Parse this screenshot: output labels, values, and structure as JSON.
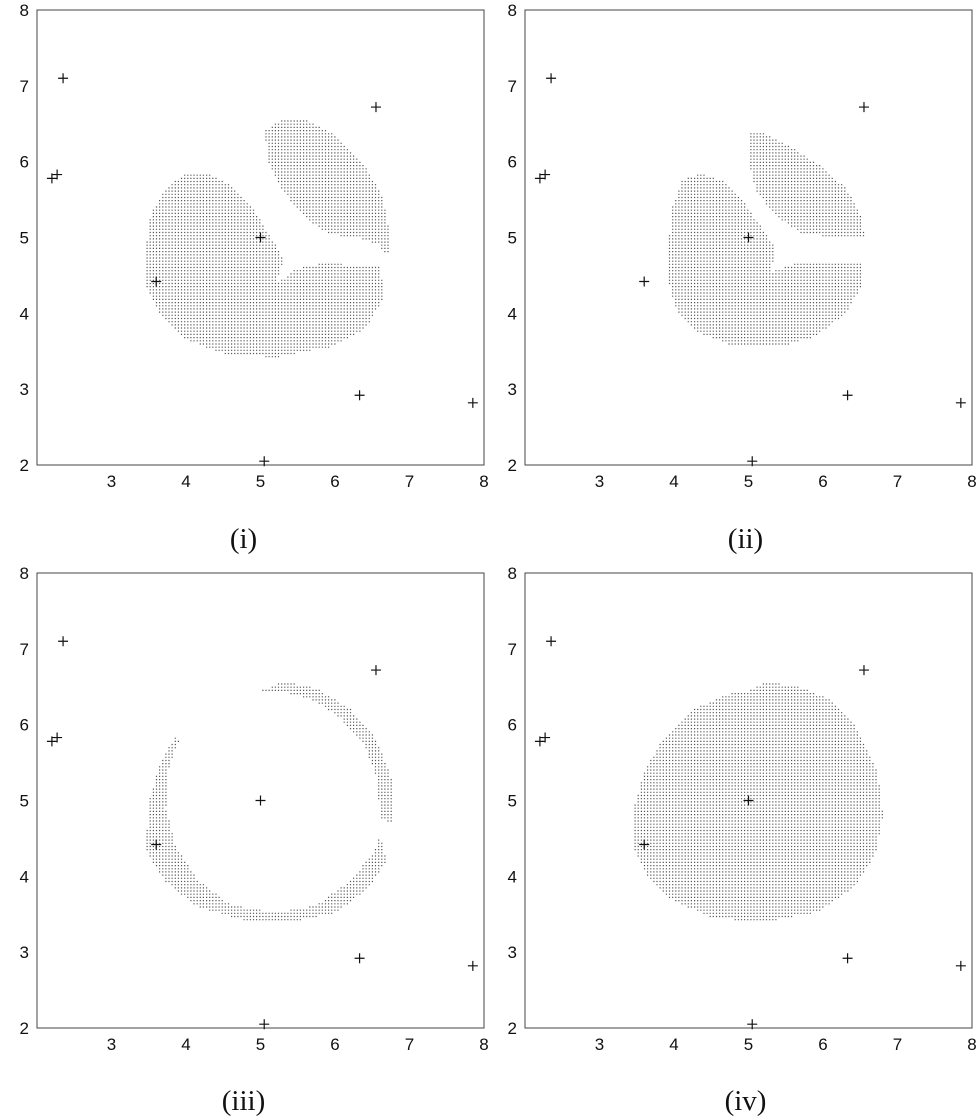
{
  "chart_data": [
    {
      "type": "scatter",
      "panel_label": "(i)",
      "xlim": [
        2,
        8
      ],
      "ylim": [
        2,
        8
      ],
      "xticks": [
        "3",
        "4",
        "5",
        "6",
        "7",
        "8"
      ],
      "yticks": [
        "2",
        "3",
        "4",
        "5",
        "6",
        "7",
        "8"
      ],
      "x_origin_label": "2",
      "grid": false,
      "points": [
        [
          2.35,
          7.1
        ],
        [
          2.2,
          5.78
        ],
        [
          2.27,
          5.83
        ],
        [
          3.6,
          4.42
        ],
        [
          5.0,
          5.0
        ],
        [
          6.55,
          6.72
        ],
        [
          6.33,
          2.92
        ],
        [
          7.85,
          2.82
        ],
        [
          5.05,
          2.05
        ]
      ],
      "regions": [
        {
          "name": "lower-left lobe",
          "polygon": [
            [
              3.45,
              4.35
            ],
            [
              3.45,
              4.85
            ],
            [
              3.52,
              5.3
            ],
            [
              3.7,
              5.62
            ],
            [
              3.95,
              5.82
            ],
            [
              4.25,
              5.85
            ],
            [
              4.55,
              5.72
            ],
            [
              4.85,
              5.45
            ],
            [
              5.1,
              5.05
            ],
            [
              5.3,
              4.72
            ],
            [
              5.2,
              4.38
            ],
            [
              5.45,
              4.58
            ],
            [
              5.85,
              4.66
            ],
            [
              6.6,
              4.62
            ],
            [
              6.65,
              4.2
            ],
            [
              6.4,
              3.8
            ],
            [
              5.9,
              3.55
            ],
            [
              5.2,
              3.42
            ],
            [
              4.55,
              3.45
            ],
            [
              4.0,
              3.65
            ],
            [
              3.65,
              3.98
            ]
          ]
        },
        {
          "name": "upper-right lobe",
          "polygon": [
            [
              5.05,
              6.4
            ],
            [
              5.3,
              6.57
            ],
            [
              5.6,
              6.55
            ],
            [
              6.0,
              6.35
            ],
            [
              6.4,
              5.95
            ],
            [
              6.62,
              5.55
            ],
            [
              6.72,
              5.1
            ],
            [
              6.7,
              4.72
            ],
            [
              6.58,
              4.9
            ],
            [
              6.35,
              4.98
            ],
            [
              5.9,
              5.05
            ],
            [
              5.6,
              5.25
            ],
            [
              5.3,
              5.6
            ],
            [
              5.1,
              6.0
            ]
          ]
        }
      ]
    },
    {
      "type": "scatter",
      "panel_label": "(ii)",
      "xlim": [
        2,
        8
      ],
      "ylim": [
        2,
        8
      ],
      "xticks": [
        "3",
        "4",
        "5",
        "6",
        "7",
        "8"
      ],
      "yticks": [
        "2",
        "3",
        "4",
        "5",
        "6",
        "7",
        "8"
      ],
      "x_origin_label": "2",
      "grid": false,
      "points": [
        [
          2.35,
          7.1
        ],
        [
          2.2,
          5.78
        ],
        [
          2.27,
          5.83
        ],
        [
          3.6,
          4.42
        ],
        [
          5.0,
          5.0
        ],
        [
          6.55,
          6.72
        ],
        [
          6.33,
          2.92
        ],
        [
          7.85,
          2.82
        ],
        [
          5.05,
          2.05
        ]
      ],
      "regions": [
        {
          "name": "lower-left lobe",
          "polygon": [
            [
              3.9,
              4.5
            ],
            [
              3.95,
              5.35
            ],
            [
              4.1,
              5.75
            ],
            [
              4.35,
              5.85
            ],
            [
              4.65,
              5.75
            ],
            [
              4.9,
              5.5
            ],
            [
              5.15,
              5.15
            ],
            [
              5.35,
              4.85
            ],
            [
              5.3,
              4.55
            ],
            [
              5.6,
              4.65
            ],
            [
              6.5,
              4.65
            ],
            [
              6.5,
              4.35
            ],
            [
              6.3,
              4.0
            ],
            [
              5.9,
              3.7
            ],
            [
              5.4,
              3.56
            ],
            [
              4.8,
              3.57
            ],
            [
              4.3,
              3.75
            ],
            [
              4.02,
              4.05
            ]
          ]
        },
        {
          "name": "upper-right lobe",
          "polygon": [
            [
              5.0,
              6.4
            ],
            [
              5.2,
              6.38
            ],
            [
              5.55,
              6.2
            ],
            [
              5.95,
              5.95
            ],
            [
              6.3,
              5.65
            ],
            [
              6.5,
              5.3
            ],
            [
              6.55,
              5.0
            ],
            [
              6.2,
              5.0
            ],
            [
              5.7,
              5.05
            ],
            [
              5.35,
              5.3
            ],
            [
              5.1,
              5.6
            ],
            [
              5.0,
              5.95
            ]
          ]
        }
      ]
    },
    {
      "type": "scatter",
      "panel_label": "(iii)",
      "xlim": [
        2,
        8
      ],
      "ylim": [
        2,
        8
      ],
      "xticks": [
        "3",
        "4",
        "5",
        "6",
        "7",
        "8"
      ],
      "yticks": [
        "2",
        "3",
        "4",
        "5",
        "6",
        "7",
        "8"
      ],
      "x_origin_label": "2",
      "grid": false,
      "points": [
        [
          2.35,
          7.1
        ],
        [
          2.2,
          5.78
        ],
        [
          2.27,
          5.83
        ],
        [
          3.6,
          4.42
        ],
        [
          5.0,
          5.0
        ],
        [
          6.55,
          6.72
        ],
        [
          6.33,
          2.92
        ],
        [
          7.85,
          2.82
        ],
        [
          5.05,
          2.05
        ]
      ],
      "regions": [
        {
          "name": "left-bottom arc",
          "polygon": [
            [
              3.45,
              4.35
            ],
            [
              3.5,
              5.0
            ],
            [
              3.65,
              5.5
            ],
            [
              3.85,
              5.85
            ],
            [
              3.9,
              5.8
            ],
            [
              3.75,
              5.4
            ],
            [
              3.72,
              4.9
            ],
            [
              3.85,
              4.4
            ],
            [
              4.15,
              3.95
            ],
            [
              4.6,
              3.62
            ],
            [
              5.2,
              3.52
            ],
            [
              5.75,
              3.62
            ],
            [
              6.2,
              3.95
            ],
            [
              6.5,
              4.3
            ],
            [
              6.6,
              4.55
            ],
            [
              6.68,
              4.2
            ],
            [
              6.45,
              3.85
            ],
            [
              6.0,
              3.52
            ],
            [
              5.4,
              3.4
            ],
            [
              4.7,
              3.43
            ],
            [
              4.1,
              3.62
            ],
            [
              3.7,
              3.95
            ]
          ]
        },
        {
          "name": "upper-right arc",
          "polygon": [
            [
              5.0,
              6.45
            ],
            [
              5.3,
              6.57
            ],
            [
              5.75,
              6.48
            ],
            [
              6.2,
              6.2
            ],
            [
              6.55,
              5.8
            ],
            [
              6.75,
              5.3
            ],
            [
              6.78,
              4.7
            ],
            [
              6.6,
              4.75
            ],
            [
              6.55,
              5.3
            ],
            [
              6.38,
              5.75
            ],
            [
              6.05,
              6.1
            ],
            [
              5.65,
              6.35
            ],
            [
              5.2,
              6.45
            ]
          ]
        }
      ]
    },
    {
      "type": "scatter",
      "panel_label": "(iv)",
      "xlim": [
        2,
        8
      ],
      "ylim": [
        2,
        8
      ],
      "xticks": [
        "3",
        "4",
        "5",
        "6",
        "7",
        "8"
      ],
      "yticks": [
        "2",
        "3",
        "4",
        "5",
        "6",
        "7",
        "8"
      ],
      "x_origin_label": "2",
      "grid": false,
      "points": [
        [
          2.35,
          7.1
        ],
        [
          2.2,
          5.78
        ],
        [
          2.27,
          5.83
        ],
        [
          3.6,
          4.42
        ],
        [
          5.0,
          5.0
        ],
        [
          6.55,
          6.72
        ],
        [
          6.33,
          2.92
        ],
        [
          7.85,
          2.82
        ],
        [
          5.05,
          2.05
        ]
      ],
      "regions": [
        {
          "name": "filled disk",
          "polygon": [
            [
              3.45,
              4.35
            ],
            [
              3.45,
              4.9
            ],
            [
              3.6,
              5.4
            ],
            [
              3.85,
              5.82
            ],
            [
              4.25,
              6.2
            ],
            [
              4.7,
              6.4
            ],
            [
              5.0,
              6.45
            ],
            [
              5.2,
              6.56
            ],
            [
              5.6,
              6.52
            ],
            [
              6.05,
              6.35
            ],
            [
              6.45,
              5.95
            ],
            [
              6.72,
              5.4
            ],
            [
              6.8,
              4.8
            ],
            [
              6.7,
              4.3
            ],
            [
              6.4,
              3.85
            ],
            [
              5.9,
              3.52
            ],
            [
              5.2,
              3.4
            ],
            [
              4.5,
              3.45
            ],
            [
              3.95,
              3.7
            ],
            [
              3.6,
              4.05
            ]
          ]
        }
      ]
    }
  ]
}
